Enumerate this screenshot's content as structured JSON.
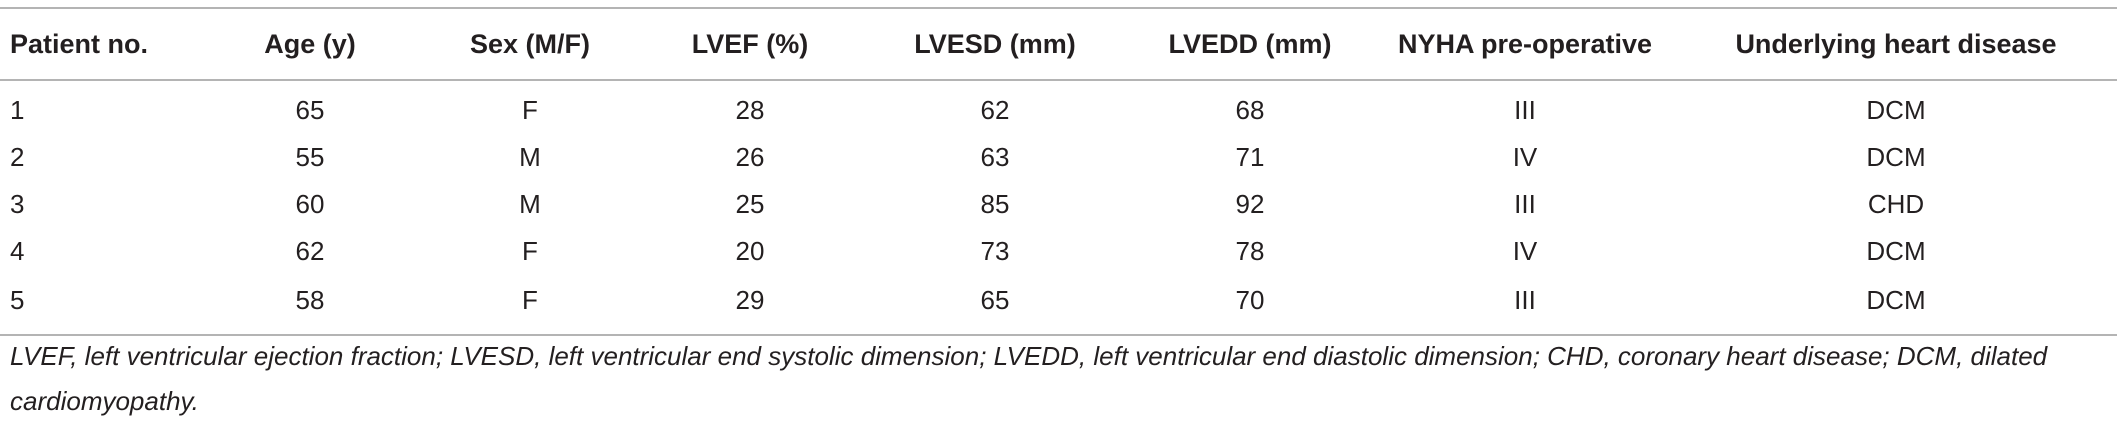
{
  "table": {
    "headers": [
      "Patient no.",
      "Age (y)",
      "Sex (M/F)",
      "LVEF (%)",
      "LVESD (mm)",
      "LVEDD (mm)",
      "NYHA pre-operative",
      "Underlying heart disease"
    ],
    "rows": [
      [
        "1",
        "65",
        "F",
        "28",
        "62",
        "68",
        "III",
        "DCM"
      ],
      [
        "2",
        "55",
        "M",
        "26",
        "63",
        "71",
        "IV",
        "DCM"
      ],
      [
        "3",
        "60",
        "M",
        "25",
        "85",
        "92",
        "III",
        "CHD"
      ],
      [
        "4",
        "62",
        "F",
        "20",
        "73",
        "78",
        "IV",
        "DCM"
      ],
      [
        "5",
        "58",
        "F",
        "29",
        "65",
        "70",
        "III",
        "DCM"
      ]
    ]
  },
  "footnote": "LVEF, left ventricular ejection fraction; LVESD, left ventricular end systolic dimension; LVEDD, left ventricular end diastolic dimension; CHD, coronary heart disease; DCM, dilated cardiomyopathy."
}
